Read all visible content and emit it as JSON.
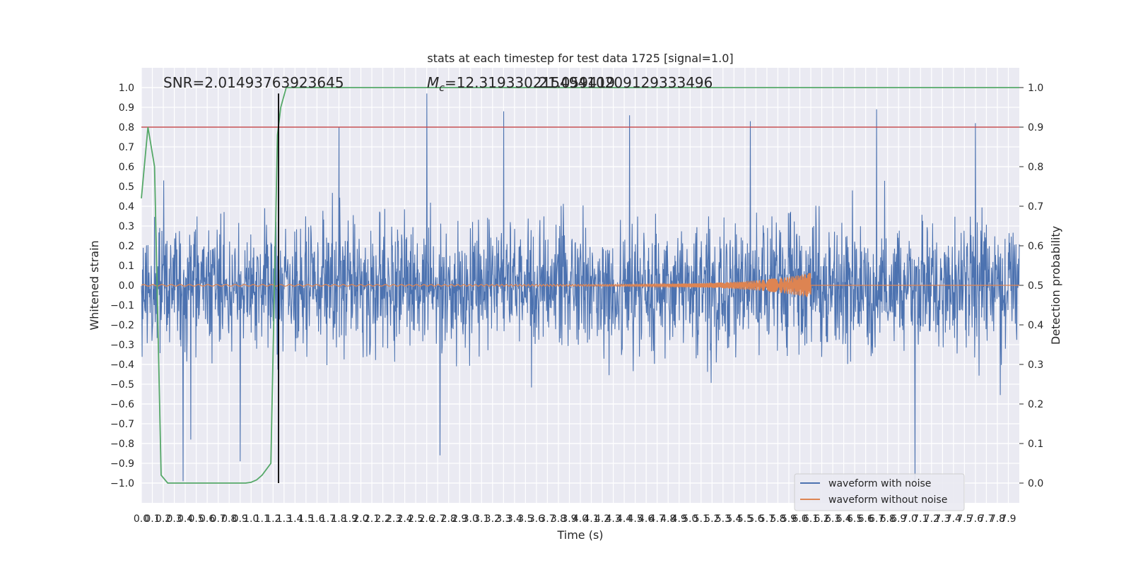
{
  "chart_data": {
    "type": "line",
    "title": "stats at each timestep for test data 1725 [signal=1.0]",
    "xlabel": "Time (s)",
    "ylabel": "Whitened strain",
    "y2label": "Detection probability",
    "xlim": [
      0.0,
      8.0
    ],
    "ylim": [
      -1.1,
      1.1
    ],
    "y2lim": [
      -0.05,
      1.05
    ],
    "grid": true,
    "legend_location": "lower-right",
    "x_ticks": [
      "0.0",
      "0.1",
      "0.2",
      "0.3",
      "0.4",
      "0.5",
      "0.6",
      "0.7",
      "0.8",
      "0.9",
      "1.0",
      "1.1",
      "1.2",
      "1.3",
      "1.4",
      "1.5",
      "1.6",
      "1.7",
      "1.8",
      "1.9",
      "2.0",
      "2.1",
      "2.2",
      "2.3",
      "2.4",
      "2.5",
      "2.6",
      "2.7",
      "2.8",
      "2.9",
      "3.0",
      "3.1",
      "3.2",
      "3.3",
      "3.4",
      "3.5",
      "3.6",
      "3.7",
      "3.8",
      "3.9",
      "4.0",
      "4.1",
      "4.2",
      "4.3",
      "4.4",
      "4.5",
      "4.6",
      "4.7",
      "4.8",
      "4.9",
      "5.0",
      "5.1",
      "5.2",
      "5.3",
      "5.4",
      "5.5",
      "5.6",
      "5.7",
      "5.8",
      "5.9",
      "6.0",
      "6.1",
      "6.2",
      "6.3",
      "6.4",
      "6.5",
      "6.6",
      "6.7",
      "6.8",
      "6.9",
      "7.0",
      "7.1",
      "7.2",
      "7.3",
      "7.4",
      "7.5",
      "7.6",
      "7.7",
      "7.8",
      "7.9"
    ],
    "y_ticks": [
      "1.0",
      "0.9",
      "0.8",
      "0.7",
      "0.6",
      "0.5",
      "0.4",
      "0.3",
      "0.2",
      "0.1",
      "0.0",
      "−0.1",
      "−0.2",
      "−0.3",
      "−0.4",
      "−0.5",
      "−0.6",
      "−0.7",
      "−0.8",
      "−0.9",
      "−1.0"
    ],
    "y2_ticks": [
      "1.0",
      "0.9",
      "0.8",
      "0.7",
      "0.6",
      "0.5",
      "0.4",
      "0.3",
      "0.2",
      "0.1",
      "0.0"
    ],
    "annotations": {
      "snr": "SNR=2.01493763923645",
      "mc_prefix": "M",
      "mc_sub": "c",
      "mc_value": "=12.31933021549410209129333496",
      "overlap": "21.059419"
    },
    "threshold": {
      "value": 0.9,
      "axis": "y2",
      "color": "#c44e52"
    },
    "marker_line": {
      "x": 1.25,
      "y_from": -1.0,
      "y_to": 0.97,
      "color": "#000000"
    },
    "series": [
      {
        "name": "waveform with noise",
        "color": "#4c72b0",
        "description_range": [
          -1.0,
          0.98
        ],
        "noise_sigma": 0.16,
        "peaks": [
          {
            "x": 0.38,
            "y": -0.99
          },
          {
            "x": 0.45,
            "y": -0.78
          },
          {
            "x": 0.9,
            "y": -0.89
          },
          {
            "x": 2.6,
            "y": 0.97
          },
          {
            "x": 2.72,
            "y": -0.86
          },
          {
            "x": 3.3,
            "y": 0.88
          },
          {
            "x": 4.45,
            "y": 0.86
          },
          {
            "x": 6.7,
            "y": 0.89
          },
          {
            "x": 7.05,
            "y": -0.99
          },
          {
            "x": 7.6,
            "y": 0.82
          },
          {
            "x": 1.8,
            "y": 0.8
          },
          {
            "x": 5.55,
            "y": 0.83
          }
        ]
      },
      {
        "name": "waveform without noise",
        "color": "#dd8452",
        "chirp_start": 0.0,
        "chirp_end": 6.1,
        "chirp_end_amplitude": 0.06
      },
      {
        "name": "detection probability",
        "axis": "y2",
        "color": "#55a868",
        "x": [
          0.0,
          0.06,
          0.12,
          0.18,
          0.24,
          0.3,
          0.4,
          0.6,
          0.8,
          0.95,
          1.0,
          1.05,
          1.1,
          1.18,
          1.24,
          1.27,
          1.32,
          1.5,
          3.0,
          5.0,
          7.0,
          8.0
        ],
        "values": [
          0.72,
          0.9,
          0.8,
          0.02,
          0.0,
          0.0,
          0.0,
          0.0,
          0.0,
          0.0,
          0.002,
          0.008,
          0.02,
          0.05,
          0.88,
          0.95,
          1.0,
          1.0,
          1.0,
          1.0,
          1.0,
          1.0
        ]
      }
    ],
    "legend": [
      "waveform with noise",
      "waveform without noise"
    ]
  }
}
